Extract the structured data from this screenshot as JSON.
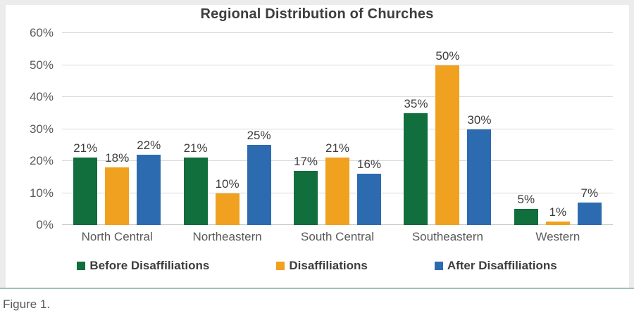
{
  "caption": "Figure 1.",
  "colors": {
    "green": "#116e3d",
    "orange": "#f0a11f",
    "blue": "#2d6bb1",
    "grid": "#d8d8d8",
    "rule": "#9fc2b1",
    "axis_text": "#595959",
    "label_text": "#3d3d3d"
  },
  "chart_data": {
    "type": "bar",
    "title": "Regional Distribution of Churches",
    "categories": [
      "North Central",
      "Northeastern",
      "South Central",
      "Southeastern",
      "Western"
    ],
    "series": [
      {
        "name": "Before Disaffiliations",
        "color": "#116e3d",
        "values": [
          21,
          21,
          17,
          35,
          5
        ]
      },
      {
        "name": "Disaffiliations",
        "color": "#f0a11f",
        "values": [
          18,
          10,
          21,
          50,
          1
        ]
      },
      {
        "name": "After Disaffiliations",
        "color": "#2d6bb1",
        "values": [
          22,
          25,
          16,
          30,
          7
        ]
      }
    ],
    "data_labels": [
      [
        "21%",
        "21%",
        "17%",
        "35%",
        "5%"
      ],
      [
        "18%",
        "10%",
        "21%",
        "50%",
        "1%"
      ],
      [
        "22%",
        "25%",
        "16%",
        "30%",
        "7%"
      ]
    ],
    "xlabel": "",
    "ylabel": "",
    "ylim": [
      0,
      60
    ],
    "yticks": [
      {
        "value": 0,
        "label": "0%"
      },
      {
        "value": 10,
        "label": "10%"
      },
      {
        "value": 20,
        "label": "20%"
      },
      {
        "value": 30,
        "label": "30%"
      },
      {
        "value": 40,
        "label": "40%"
      },
      {
        "value": 50,
        "label": "50%"
      },
      {
        "value": 60,
        "label": "60%"
      }
    ],
    "grid": true,
    "legend_position": "bottom"
  }
}
